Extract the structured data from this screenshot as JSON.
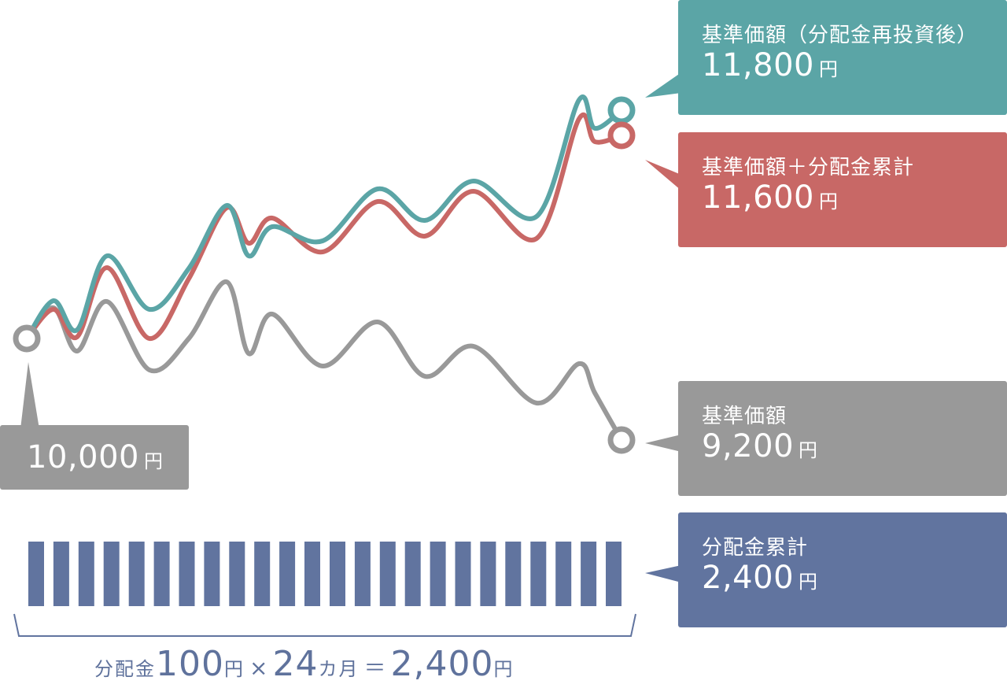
{
  "chart_data": {
    "type": "line",
    "series": [
      {
        "name": "基準価額（分配金再投資後）",
        "color": "#5ba5a6",
        "values": [
          10000,
          10300,
          10070,
          10650,
          10230,
          10550,
          11050,
          10650,
          10880,
          10770,
          11180,
          10930,
          11240,
          10960,
          11880,
          11660,
          11800
        ]
      },
      {
        "name": "基準価額＋分配金累計",
        "color": "#c86866",
        "values": [
          10000,
          10230,
          10010,
          10560,
          10000,
          10470,
          11030,
          10750,
          10950,
          10680,
          11080,
          10810,
          11160,
          10790,
          11730,
          11550,
          11600
        ]
      },
      {
        "name": "基準価額",
        "color": "#999999",
        "values": [
          10000,
          10240,
          9900,
          10290,
          9750,
          10000,
          10450,
          9880,
          10190,
          9780,
          10130,
          9700,
          9940,
          9490,
          9800,
          9570,
          9200
        ]
      }
    ],
    "start": {
      "label": "10,000",
      "unit": "円"
    },
    "bars": {
      "count": 24,
      "color": "#61749f"
    },
    "grid": false
  },
  "callouts": {
    "reinvest": {
      "label": "基準価額（分配金再投資後）",
      "value": "11,800",
      "unit": "円",
      "color": "#5ba5a6"
    },
    "total": {
      "label": "基準価額＋分配金累計",
      "value": "11,600",
      "unit": "円",
      "color": "#c86866"
    },
    "nav": {
      "label": "基準価額",
      "value": "9,200",
      "unit": "円",
      "color": "#999999"
    },
    "distribution": {
      "label": "分配金累計",
      "value": "2,400",
      "unit": "円",
      "color": "#61749f"
    },
    "start": {
      "value": "10,000",
      "unit": "円",
      "color": "#999999"
    }
  },
  "formula": {
    "prefix": "分配金",
    "amount": "100",
    "amount_unit": "円",
    "times": "×",
    "months": "24",
    "months_unit": "カ月",
    "equals": "＝",
    "total": "2,400",
    "total_unit": "円"
  }
}
